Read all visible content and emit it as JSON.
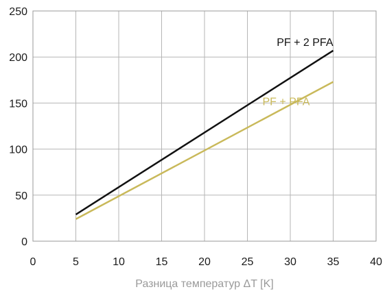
{
  "chart_data": {
    "type": "line",
    "title": "",
    "xlabel": "Разница температур ΔT [K]",
    "ylabel": "",
    "xlim": [
      0,
      40
    ],
    "ylim": [
      0,
      250
    ],
    "xticks": [
      0,
      5,
      10,
      15,
      20,
      25,
      30,
      35,
      40
    ],
    "yticks": [
      0,
      50,
      100,
      150,
      200,
      250
    ],
    "grid": true,
    "legend": "inline labels near line ends",
    "series": [
      {
        "name": "PF + 2 PFA",
        "color": "#111111",
        "x": [
          5,
          35
        ],
        "y": [
          29,
          207
        ]
      },
      {
        "name": "PF + PFA",
        "color": "#c9b95a",
        "x": [
          5,
          35
        ],
        "y": [
          24,
          173
        ]
      }
    ]
  }
}
